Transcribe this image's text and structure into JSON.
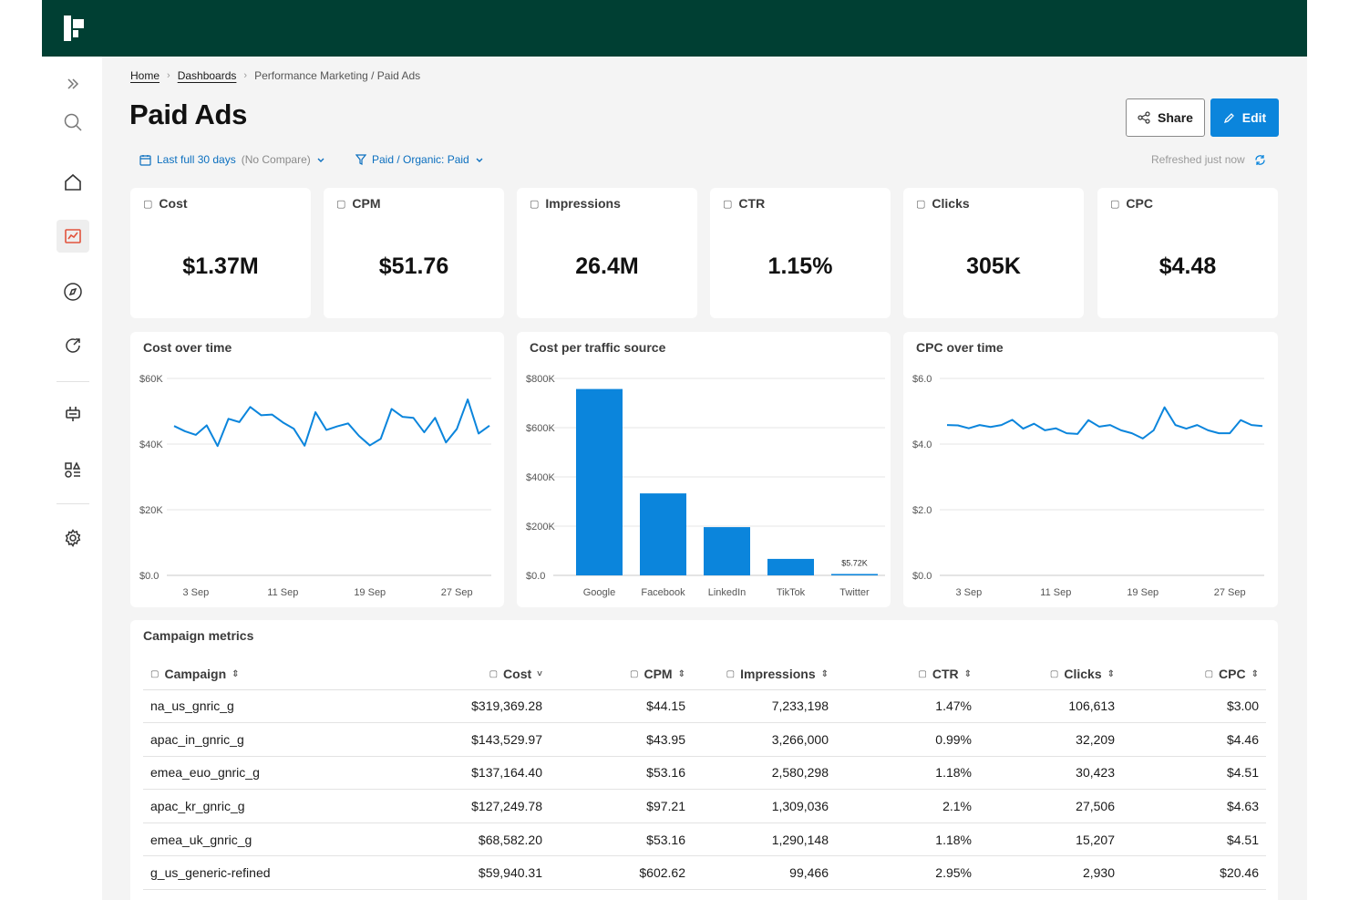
{
  "breadcrumb": {
    "home": "Home",
    "dashboards": "Dashboards",
    "current": "Performance Marketing / Paid Ads"
  },
  "page_title": "Paid Ads",
  "actions": {
    "share": "Share",
    "edit": "Edit"
  },
  "filters": {
    "date": {
      "label": "Last full 30 days",
      "compare": "(No Compare)"
    },
    "channel": {
      "label": "Paid / Organic: Paid"
    }
  },
  "refreshed": "Refreshed just now",
  "kpis": [
    {
      "title": "Cost",
      "value": "$1.37M"
    },
    {
      "title": "CPM",
      "value": "$51.76"
    },
    {
      "title": "Impressions",
      "value": "26.4M"
    },
    {
      "title": "CTR",
      "value": "1.15%"
    },
    {
      "title": "Clicks",
      "value": "305K"
    },
    {
      "title": "CPC",
      "value": "$4.48"
    }
  ],
  "colors": {
    "accent": "#0b85dc",
    "topbar": "#003f33",
    "active_icon": "#e2533d"
  },
  "sidebar": {
    "icons": [
      "double-chevron-right-icon",
      "search-icon",
      "home-icon",
      "chart-icon",
      "compass-icon",
      "share-out-icon",
      "plug-icon",
      "shapes-icon",
      "gear-icon"
    ]
  },
  "chart_data": [
    {
      "type": "line",
      "title": "Cost over time",
      "ylim": [
        0,
        60000
      ],
      "yticks": [
        "$0.0",
        "$20K",
        "$40K",
        "$60K"
      ],
      "xticks": [
        {
          "label": "3 Sep",
          "day": 3
        },
        {
          "label": "11 Sep",
          "day": 11
        },
        {
          "label": "19 Sep",
          "day": 19
        },
        {
          "label": "27 Sep",
          "day": 27
        }
      ],
      "x": [
        1,
        2,
        3,
        4,
        5,
        6,
        7,
        8,
        9,
        10,
        11,
        12,
        13,
        14,
        15,
        16,
        17,
        18,
        19,
        20,
        21,
        22,
        23,
        24,
        25,
        26,
        27,
        28,
        29,
        30
      ],
      "values": [
        45500,
        43900,
        42800,
        45700,
        39400,
        47700,
        46700,
        51300,
        48800,
        49000,
        46600,
        44700,
        39500,
        49700,
        44300,
        45400,
        46300,
        42500,
        39600,
        41600,
        50700,
        48300,
        48000,
        43600,
        48000,
        40500,
        44600,
        53600,
        43200,
        45600
      ]
    },
    {
      "type": "bar",
      "title": "Cost per traffic source",
      "categories": [
        "Google",
        "Facebook",
        "LinkedIn",
        "TikTok",
        "Twitter"
      ],
      "values": [
        757000,
        333000,
        196000,
        67000,
        5720
      ],
      "ylim": [
        0,
        800000
      ],
      "yticks": [
        "$0.0",
        "$200K",
        "$400K",
        "$600K",
        "$800K"
      ],
      "annotations": [
        {
          "category": "Twitter",
          "text": "$5.72K"
        }
      ]
    },
    {
      "type": "line",
      "title": "CPC over time",
      "ylim": [
        0,
        6
      ],
      "yticks": [
        "$0.0",
        "$2.0",
        "$4.0",
        "$6.0"
      ],
      "xticks": [
        {
          "label": "3 Sep",
          "day": 3
        },
        {
          "label": "11 Sep",
          "day": 11
        },
        {
          "label": "19 Sep",
          "day": 19
        },
        {
          "label": "27 Sep",
          "day": 27
        }
      ],
      "x": [
        1,
        2,
        3,
        4,
        5,
        6,
        7,
        8,
        9,
        10,
        11,
        12,
        13,
        14,
        15,
        16,
        17,
        18,
        19,
        20,
        21,
        22,
        23,
        24,
        25,
        26,
        27,
        28,
        29,
        30
      ],
      "values": [
        4.58,
        4.57,
        4.48,
        4.58,
        4.52,
        4.58,
        4.74,
        4.47,
        4.62,
        4.42,
        4.48,
        4.33,
        4.31,
        4.73,
        4.53,
        4.58,
        4.42,
        4.33,
        4.17,
        4.42,
        5.12,
        4.58,
        4.47,
        4.58,
        4.42,
        4.33,
        4.33,
        4.73,
        4.58,
        4.55
      ]
    }
  ],
  "table": {
    "title": "Campaign metrics",
    "columns": [
      "Campaign",
      "Cost",
      "CPM",
      "Impressions",
      "CTR",
      "Clicks",
      "CPC"
    ],
    "rows": [
      [
        "na_us_gnric_g",
        "$319,369.28",
        "$44.15",
        "7,233,198",
        "1.47%",
        "106,613",
        "$3.00"
      ],
      [
        "apac_in_gnric_g",
        "$143,529.97",
        "$43.95",
        "3,266,000",
        "0.99%",
        "32,209",
        "$4.46"
      ],
      [
        "emea_euo_gnric_g",
        "$137,164.40",
        "$53.16",
        "2,580,298",
        "1.18%",
        "30,423",
        "$4.51"
      ],
      [
        "apac_kr_gnric_g",
        "$127,249.78",
        "$97.21",
        "1,309,036",
        "2.1%",
        "27,506",
        "$4.63"
      ],
      [
        "emea_uk_gnric_g",
        "$68,582.20",
        "$53.16",
        "1,290,148",
        "1.18%",
        "15,207",
        "$4.51"
      ],
      [
        "g_us_generic-refined",
        "$59,940.31",
        "$602.62",
        "99,466",
        "2.95%",
        "2,930",
        "$20.46"
      ]
    ]
  }
}
